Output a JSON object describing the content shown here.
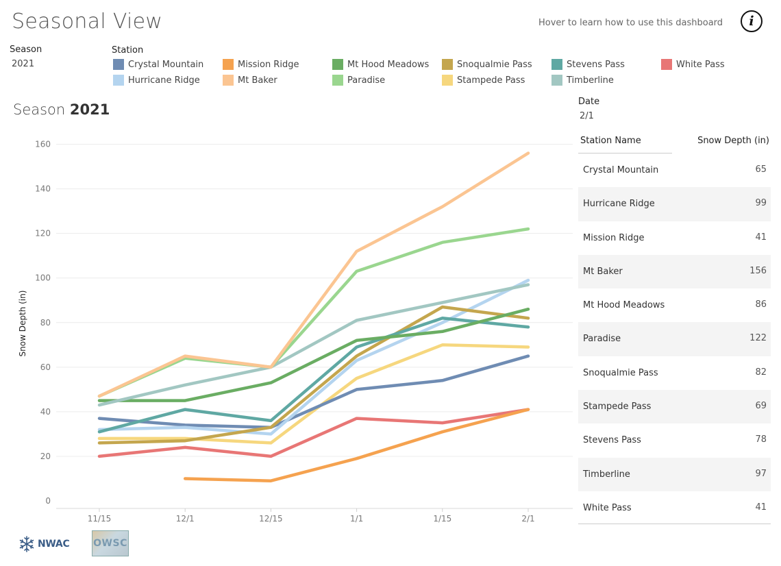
{
  "header": {
    "title": "Seasonal View",
    "hover_hint": "Hover to learn how to use this dashboard",
    "info_glyph": "i"
  },
  "filters": {
    "season_label": "Season",
    "season_value": "2021",
    "station_label": "Station",
    "date_label": "Date",
    "date_value": "2/1"
  },
  "legend": [
    {
      "name": "Crystal Mountain",
      "color": "#6f8cb3"
    },
    {
      "name": "Mission Ridge",
      "color": "#f5a24f"
    },
    {
      "name": "Mt Hood Meadows",
      "color": "#6aad63"
    },
    {
      "name": "Snoqualmie Pass",
      "color": "#c4a64e"
    },
    {
      "name": "Stevens Pass",
      "color": "#5fa8a3"
    },
    {
      "name": "White Pass",
      "color": "#e87675"
    },
    {
      "name": "Hurricane Ridge",
      "color": "#b4d4ef"
    },
    {
      "name": "Mt Baker",
      "color": "#fbc592"
    },
    {
      "name": "Paradise",
      "color": "#9ad68f"
    },
    {
      "name": "Stampede Pass",
      "color": "#f6d77e"
    },
    {
      "name": "Timberline",
      "color": "#a2c7c2"
    }
  ],
  "chart_heading": {
    "prefix": "Season ",
    "season": "2021"
  },
  "chart_data": {
    "type": "line",
    "title": "Season 2021",
    "xlabel": "",
    "ylabel": "Snow Depth (in)",
    "x": [
      "11/15",
      "12/1",
      "12/15",
      "1/1",
      "1/15",
      "2/1"
    ],
    "ylim": [
      0,
      160
    ],
    "yticks": [
      0,
      20,
      40,
      60,
      80,
      100,
      120,
      140,
      160
    ],
    "grid": true,
    "series": [
      {
        "name": "White Pass",
        "color": "#e87675",
        "values": [
          20,
          24,
          20,
          37,
          35,
          41
        ]
      },
      {
        "name": "Mission Ridge",
        "color": "#f5a24f",
        "values": [
          null,
          10,
          9,
          19,
          31,
          41
        ]
      },
      {
        "name": "Stampede Pass",
        "color": "#f6d77e",
        "values": [
          28,
          28,
          26,
          55,
          70,
          69
        ]
      },
      {
        "name": "Crystal Mountain",
        "color": "#6f8cb3",
        "values": [
          37,
          34,
          33,
          50,
          54,
          65
        ]
      },
      {
        "name": "Hurricane Ridge",
        "color": "#b4d4ef",
        "values": [
          32,
          33,
          30,
          63,
          80,
          99
        ]
      },
      {
        "name": "Snoqualmie Pass",
        "color": "#c4a64e",
        "values": [
          26,
          27,
          33,
          65,
          87,
          82
        ]
      },
      {
        "name": "Stevens Pass",
        "color": "#5fa8a3",
        "values": [
          31,
          41,
          36,
          69,
          82,
          78
        ]
      },
      {
        "name": "Mt Hood Meadows",
        "color": "#6aad63",
        "values": [
          45,
          45,
          53,
          72,
          76,
          86
        ]
      },
      {
        "name": "Timberline",
        "color": "#a2c7c2",
        "values": [
          43,
          52,
          60,
          81,
          89,
          97
        ]
      },
      {
        "name": "Paradise",
        "color": "#9ad68f",
        "values": [
          47,
          64,
          60,
          103,
          116,
          122
        ]
      },
      {
        "name": "Mt Baker",
        "color": "#fbc592",
        "values": [
          47,
          65,
          60,
          112,
          132,
          156
        ]
      }
    ]
  },
  "table": {
    "headers": {
      "name": "Station Name",
      "value": "Snow Depth (in)"
    },
    "rows": [
      {
        "name": "Crystal Mountain",
        "value": "65"
      },
      {
        "name": "Hurricane Ridge",
        "value": "99"
      },
      {
        "name": "Mission Ridge",
        "value": "41"
      },
      {
        "name": "Mt Baker",
        "value": "156"
      },
      {
        "name": "Mt Hood Meadows",
        "value": "86"
      },
      {
        "name": "Paradise",
        "value": "122"
      },
      {
        "name": "Snoqualmie Pass",
        "value": "82"
      },
      {
        "name": "Stampede Pass",
        "value": "69"
      },
      {
        "name": "Stevens Pass",
        "value": "78"
      },
      {
        "name": "Timberline",
        "value": "97"
      },
      {
        "name": "White Pass",
        "value": "41"
      }
    ]
  },
  "footer": {
    "nwac_label": "NWAC",
    "owsc_label": "OWSC",
    "nwac_icon": "snowflake-icon"
  }
}
